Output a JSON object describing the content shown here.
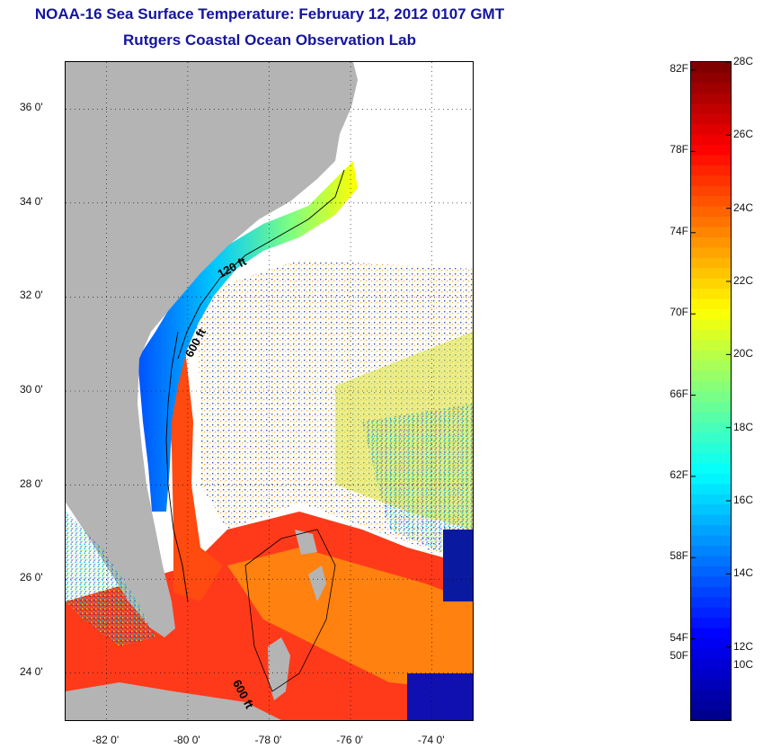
{
  "title": {
    "line1": "NOAA-16 Sea Surface Temperature:  February 12, 2012 0107 GMT",
    "line2": "Rutgers Coastal Ocean Observation Lab"
  },
  "map": {
    "lon_range": [
      -83,
      -73
    ],
    "lat_range": [
      23,
      37
    ],
    "land_color": "#b4b4b4",
    "cloud_color": "#ffffff",
    "y_ticks": [
      {
        "lat": 36,
        "label": "36 0'"
      },
      {
        "lat": 34,
        "label": "34 0'"
      },
      {
        "lat": 32,
        "label": "32 0'"
      },
      {
        "lat": 30,
        "label": "30 0'"
      },
      {
        "lat": 28,
        "label": "28 0'"
      },
      {
        "lat": 26,
        "label": "26 0'"
      },
      {
        "lat": 24,
        "label": "24 0'"
      }
    ],
    "x_ticks": [
      {
        "lon": -82,
        "label": "-82 0'"
      },
      {
        "lon": -80,
        "label": "-80 0'"
      },
      {
        "lon": -78,
        "label": "-78 0'"
      },
      {
        "lon": -76,
        "label": "-76 0'"
      },
      {
        "lon": -74,
        "label": "-74 0'"
      }
    ],
    "contour_labels": [
      {
        "text": "120 ft",
        "lon": -79.2,
        "lat": 32.4
      },
      {
        "text": "600 ft",
        "lon": -79.9,
        "lat": 30.7
      },
      {
        "text": "600 ft",
        "lon": -78.9,
        "lat": 23.8
      }
    ]
  },
  "colorbar": {
    "range_c": [
      10,
      28
    ],
    "fahrenheit_labels": [
      {
        "value": 82,
        "label": "82F"
      },
      {
        "value": 78,
        "label": "78F"
      },
      {
        "value": 74,
        "label": "74F"
      },
      {
        "value": 70,
        "label": "70F"
      },
      {
        "value": 66,
        "label": "66F"
      },
      {
        "value": 62,
        "label": "62F"
      },
      {
        "value": 58,
        "label": "58F"
      },
      {
        "value": 54,
        "label": "54F"
      },
      {
        "value": 50,
        "label": "50F"
      }
    ],
    "celsius_labels": [
      {
        "value": 28,
        "label": "28C"
      },
      {
        "value": 26,
        "label": "26C"
      },
      {
        "value": 24,
        "label": "24C"
      },
      {
        "value": 22,
        "label": "22C"
      },
      {
        "value": 20,
        "label": "20C"
      },
      {
        "value": 18,
        "label": "18C"
      },
      {
        "value": 16,
        "label": "16C"
      },
      {
        "value": 14,
        "label": "14C"
      },
      {
        "value": 12,
        "label": "12C"
      },
      {
        "value": 10,
        "label": "10C"
      }
    ],
    "stops": [
      "#00008f",
      "#0000ff",
      "#0080ff",
      "#00ffff",
      "#80ff80",
      "#ffff00",
      "#ff8000",
      "#ff0000",
      "#800000"
    ]
  }
}
